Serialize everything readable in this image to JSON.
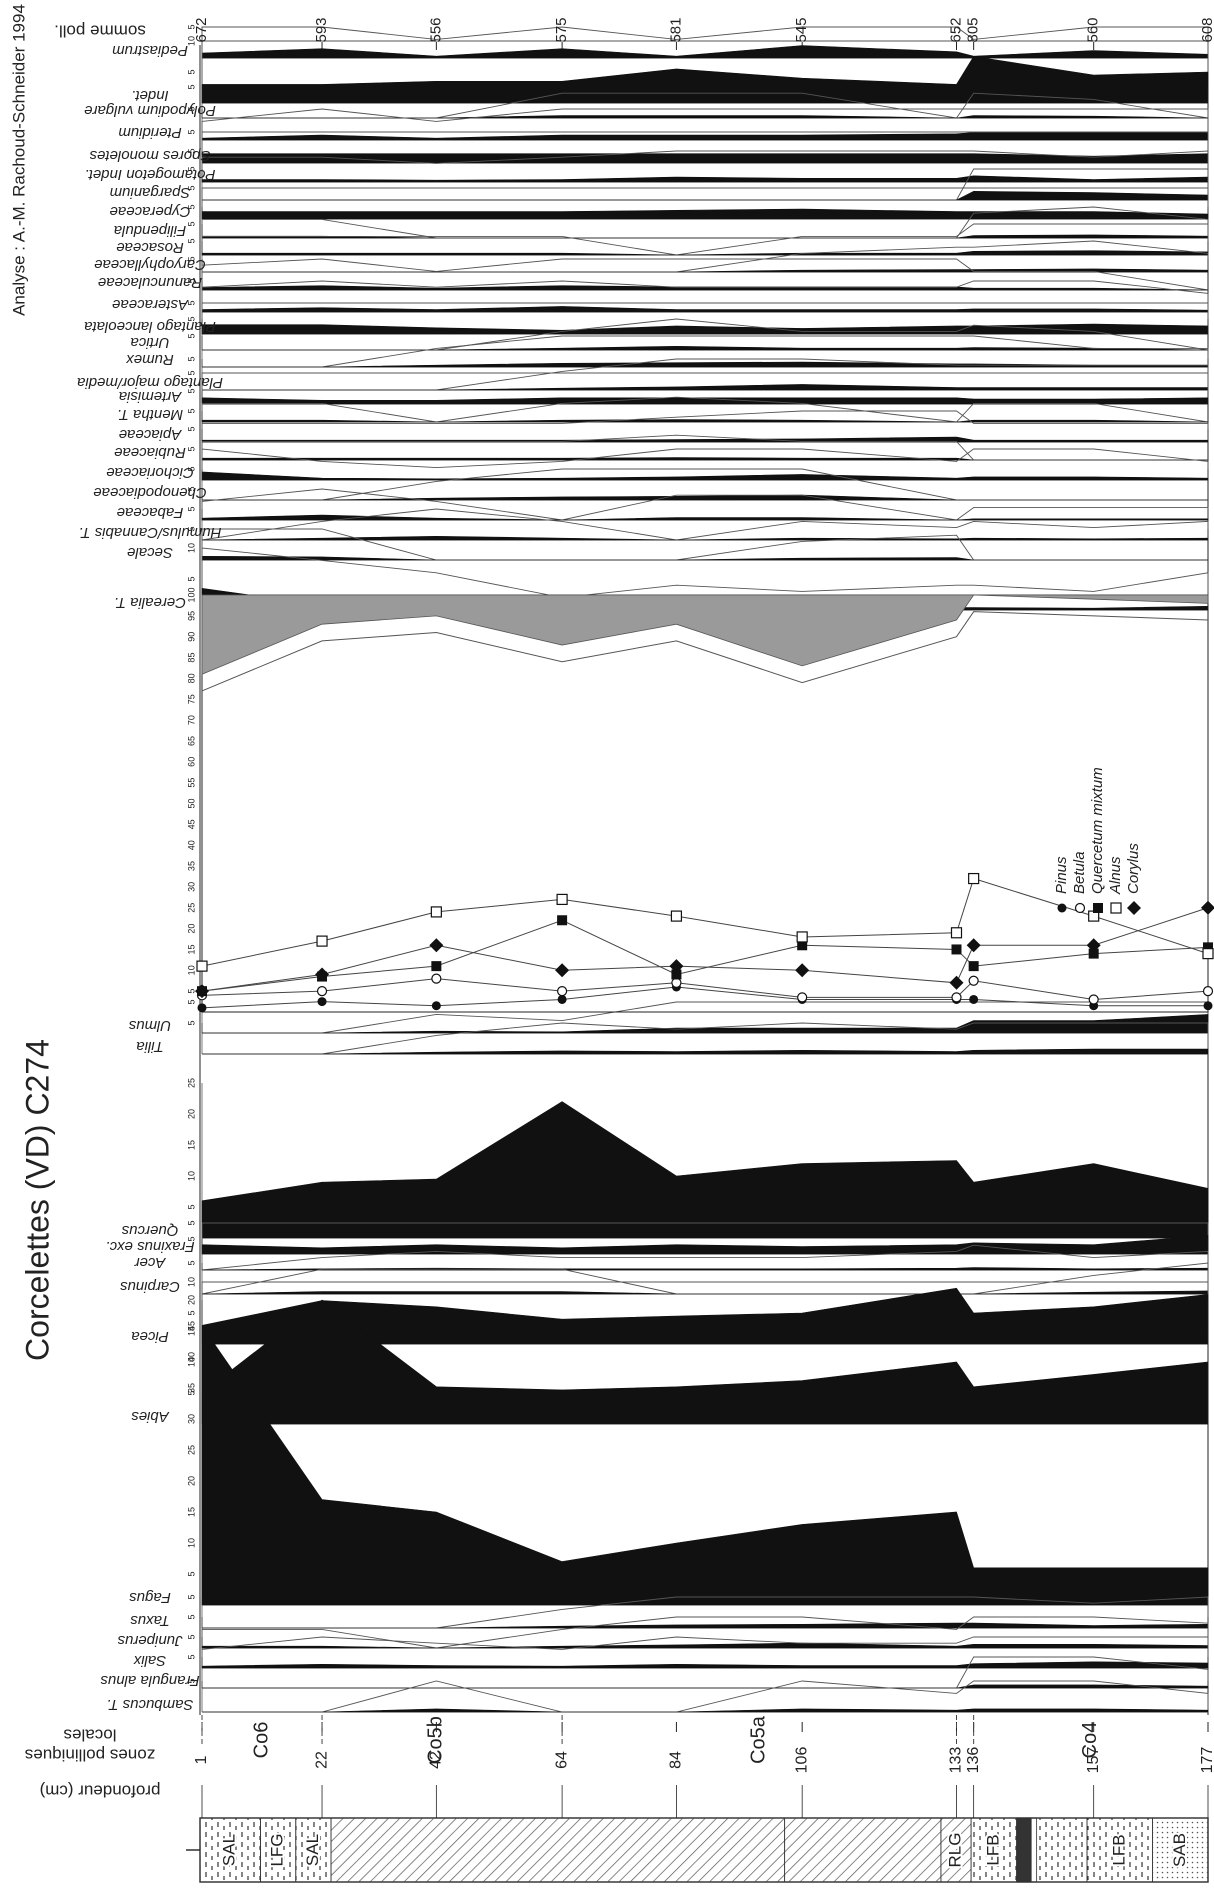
{
  "header": {
    "site_title": "Corcelettes (VD) C274",
    "analyst": "Analyse : A.-M. Rachoud-Schneider 1994",
    "sum_label": "somme poll.",
    "depth_label": "profondeur (cm)",
    "zones_label_1": "zones polliniques",
    "zones_label_2": "locales"
  },
  "lithology": [
    {
      "label": "SAL",
      "from": 0,
      "to": 0.06
    },
    {
      "label": "LFG",
      "from": 0.06,
      "to": 0.095
    },
    {
      "label": "SAL",
      "from": 0.095,
      "to": 0.13
    },
    {
      "label": "",
      "from": 0.13,
      "to": 0.58
    },
    {
      "label": "RLG",
      "from": 0.735,
      "to": 0.765
    },
    {
      "label": "LFB",
      "from": 0.765,
      "to": 0.81
    },
    {
      "label": "LFB",
      "from": 0.88,
      "to": 0.945
    },
    {
      "label": "SAB",
      "from": 0.945,
      "to": 1.0
    }
  ],
  "zones": [
    {
      "label": "Co6",
      "boundary_depth": 22
    },
    {
      "label": "Co5b",
      "boundary_depth": 64
    },
    {
      "label": "Co5a",
      "boundary_depth": 133
    },
    {
      "label": "Co4",
      "boundary_depth": 136
    }
  ],
  "chart_data": {
    "type": "area",
    "depths": [
      1,
      22,
      42,
      64,
      84,
      106,
      133,
      136,
      157,
      177
    ],
    "pollen_sums": [
      672,
      593,
      556,
      575,
      581,
      545,
      652,
      805,
      560,
      608
    ],
    "taxa": [
      {
        "name": "Sambucus T.",
        "values": [
          0,
          0,
          0.5,
          0,
          0,
          0.5,
          0.3,
          0.5,
          0.5,
          0.3
        ]
      },
      {
        "name": "Frangula alnus",
        "values": [
          0,
          0,
          0,
          0,
          0,
          0,
          0,
          0.5,
          0.5,
          0.3
        ]
      },
      {
        "name": "Salix",
        "values": [
          0.3,
          0.6,
          0.4,
          0.3,
          0.6,
          0.4,
          0.4,
          0.7,
          1.0,
          0.8
        ]
      },
      {
        "name": "Juniperus",
        "values": [
          0.3,
          0.3,
          0,
          0.3,
          0.5,
          0.8,
          0.3,
          0.6,
          0.6,
          0.4
        ]
      },
      {
        "name": "Taxus",
        "values": [
          0,
          0,
          0,
          0.3,
          0.5,
          0.6,
          0.8,
          0.8,
          0.4,
          0.6
        ]
      },
      {
        "name": "Fagus",
        "values": [
          45,
          17,
          15,
          7,
          10,
          13,
          15,
          6,
          6,
          6
        ]
      },
      {
        "name": "Abies",
        "values": [
          5,
          20,
          6,
          5.5,
          6,
          7,
          10,
          6,
          8,
          10
        ]
      },
      {
        "name": "Picea",
        "values": [
          3,
          7,
          6,
          4,
          4.5,
          5,
          9,
          5,
          6,
          8
        ]
      },
      {
        "name": "Carpinus",
        "values": [
          0,
          0.4,
          0.4,
          0.4,
          0,
          0,
          0,
          0,
          0.3,
          0.5
        ]
      },
      {
        "name": "Acer",
        "values": [
          0,
          0.2,
          0.3,
          0.2,
          0.2,
          0.2,
          0.3,
          0.4,
          0.2,
          0.3
        ]
      },
      {
        "name": "Fraxinus exc.",
        "values": [
          1.5,
          1,
          1.5,
          1,
          1.5,
          1.2,
          1.5,
          1.8,
          1.5,
          3
        ]
      },
      {
        "name": "Quercus",
        "values": [
          6,
          9,
          9.5,
          22,
          10,
          12,
          12.5,
          9,
          12,
          8
        ]
      },
      {
        "name": "Tilia",
        "values": [
          0,
          0,
          0.3,
          0.5,
          0.4,
          0.6,
          0.4,
          0.6,
          0.8,
          0.8
        ]
      },
      {
        "name": "Ulmus",
        "values": [
          0,
          0,
          0.3,
          0.2,
          0.8,
          0.8,
          0.8,
          2,
          2,
          3
        ]
      },
      {
        "name": "Cerealia T.",
        "values": [
          3.5,
          0.8,
          0.6,
          0.2,
          0.4,
          0.3,
          0.4,
          0.4,
          0.3,
          0.6
        ]
      },
      {
        "name": "Secale",
        "values": [
          0.6,
          0.5,
          0,
          0,
          0,
          0.3,
          0.4,
          0,
          0,
          0
        ]
      },
      {
        "name": "Humulus/Cannabis T.",
        "values": [
          0,
          0.3,
          0.6,
          0.3,
          0,
          0.3,
          0.2,
          0.3,
          0.2,
          0.3
        ]
      },
      {
        "name": "Fabaceae",
        "values": [
          0.3,
          0.8,
          0.3,
          0,
          0.4,
          0.4,
          0,
          0.2,
          0.2,
          0.2
        ]
      },
      {
        "name": "Chenopodiaceae",
        "values": [
          0,
          0,
          0.3,
          0.5,
          0.6,
          0.8,
          0,
          0,
          0,
          0
        ]
      },
      {
        "name": "Cichoriaceae",
        "values": [
          1.3,
          0.3,
          0.2,
          0.3,
          0.5,
          0.9,
          0.3,
          0.5,
          0.5,
          0.3
        ]
      },
      {
        "name": "Rubiaceae",
        "values": [
          0.3,
          0.3,
          0.3,
          0.3,
          0.4,
          0.3,
          0.3,
          0,
          0,
          0
        ]
      },
      {
        "name": "Apiaceae",
        "values": [
          0.3,
          0.3,
          0.3,
          0.3,
          0.4,
          0.5,
          0.8,
          0.3,
          0.3,
          0.3
        ]
      },
      {
        "name": "Mentha T.",
        "values": [
          0.3,
          0.3,
          0,
          0.3,
          0.4,
          0.3,
          0,
          0.3,
          0.3,
          0
        ]
      },
      {
        "name": "Artemisia",
        "values": [
          1,
          0.6,
          0.6,
          1,
          1,
          1,
          1,
          0.8,
          0.8,
          1
        ]
      },
      {
        "name": "Plantago major/media",
        "values": [
          0,
          0,
          0,
          0.3,
          0.5,
          0.9,
          0.4,
          0.4,
          0.4,
          0.4
        ]
      },
      {
        "name": "Rumex",
        "values": [
          0,
          0,
          0.3,
          0.6,
          0.7,
          0.8,
          0.5,
          0.5,
          0.3,
          0.3
        ]
      },
      {
        "name": "Urtica",
        "values": [
          0,
          0,
          0,
          0.3,
          0.6,
          0.3,
          0.3,
          0.4,
          0.3,
          0
        ]
      },
      {
        "name": "Plantago lanceolata",
        "values": [
          1.5,
          1.5,
          1,
          0.6,
          1.3,
          0.9,
          1.3,
          1.3,
          1.6,
          1.3
        ]
      },
      {
        "name": "Asteraceae",
        "values": [
          0.4,
          0.7,
          0.4,
          0.9,
          0.4,
          0.4,
          0.4,
          0.5,
          0.5,
          0.3
        ]
      },
      {
        "name": "Ranunculaceae",
        "values": [
          0.4,
          0.7,
          0.3,
          0.7,
          0.5,
          0.5,
          0.5,
          0.3,
          0.3,
          0
        ]
      },
      {
        "name": "Caryophyllaceae",
        "values": [
          0,
          0,
          0,
          0,
          0,
          0.3,
          0.4,
          0.4,
          0.5,
          0.3
        ]
      },
      {
        "name": "Rosaceae",
        "values": [
          0.3,
          0.3,
          0.3,
          0.3,
          0,
          0.3,
          0.3,
          0.6,
          0.7,
          0.5
        ]
      },
      {
        "name": "Filipendula",
        "values": [
          0.3,
          0.3,
          0,
          0,
          0,
          0,
          0,
          0.4,
          0.5,
          0.3
        ]
      },
      {
        "name": "Cyperaceae",
        "values": [
          1.2,
          1.2,
          1.2,
          1.2,
          1.4,
          1.6,
          1.2,
          1.2,
          1.2,
          0.8
        ]
      },
      {
        "name": "Sparganium",
        "values": [
          0,
          0,
          0,
          0,
          0,
          0,
          0,
          1.4,
          1.2,
          0.8
        ]
      },
      {
        "name": "Potamogeton Indet.",
        "values": [
          0.4,
          0.4,
          0.3,
          0.4,
          0.8,
          0.6,
          0.6,
          1,
          0.4,
          0.8
        ]
      },
      {
        "name": "Spores monoletes",
        "values": [
          1.5,
          1.5,
          1.5,
          1.5,
          1.5,
          1.5,
          1.5,
          1.5,
          1.1,
          1.5
        ]
      },
      {
        "name": "Pteridium",
        "values": [
          0.3,
          0.8,
          0.3,
          0.8,
          0.8,
          0.8,
          1,
          1.2,
          1.2,
          1.2
        ]
      },
      {
        "name": "Polypodium vulgare",
        "values": [
          0,
          0,
          0,
          0.4,
          0.4,
          0.4,
          0,
          0.4,
          0.3,
          0
        ]
      },
      {
        "name": "Indet.",
        "values": [
          3,
          3,
          3.5,
          3.5,
          5.5,
          4,
          3,
          7.5,
          4.5,
          5
        ]
      },
      {
        "name": "Pediastrum",
        "values": [
          0.8,
          1.5,
          0.3,
          1.5,
          0.3,
          2,
          1,
          0.3,
          1.2,
          0.6
        ]
      }
    ],
    "trees_cumulative": {
      "pinus": [
        1,
        2.5,
        1.5,
        3,
        6,
        3,
        3,
        3,
        1.5,
        1.5
      ],
      "tree_sum": [
        81,
        93,
        95,
        88,
        93,
        83,
        94,
        100,
        99,
        98
      ]
    },
    "lines": {
      "series": [
        {
          "name": "Pinus",
          "marker": "filled-circle",
          "values": [
            1,
            2.5,
            1.5,
            3,
            6,
            3,
            3,
            3,
            1.5,
            1.5
          ]
        },
        {
          "name": "Betula",
          "marker": "open-circle",
          "values": [
            4,
            5,
            8,
            5,
            7,
            3.5,
            3.5,
            7.5,
            3,
            5
          ]
        },
        {
          "name": "Quercetum mixtum",
          "marker": "filled-square",
          "values": [
            5,
            8.5,
            11,
            22,
            9,
            16,
            15,
            11,
            14,
            15.5
          ]
        },
        {
          "name": "Alnus",
          "marker": "open-square",
          "values": [
            11,
            17,
            24,
            27,
            23,
            18,
            19,
            32,
            23,
            14
          ]
        },
        {
          "name": "Corylus",
          "marker": "filled-diamond",
          "values": [
            5,
            9,
            16,
            10,
            11,
            10,
            7,
            16,
            16,
            25
          ]
        }
      ],
      "xlim": [
        0,
        100
      ],
      "ticks": [
        5,
        10,
        15,
        20,
        25,
        30,
        35,
        40,
        45,
        50,
        55,
        60,
        65,
        70,
        75,
        80,
        85,
        90,
        95,
        100
      ]
    }
  }
}
